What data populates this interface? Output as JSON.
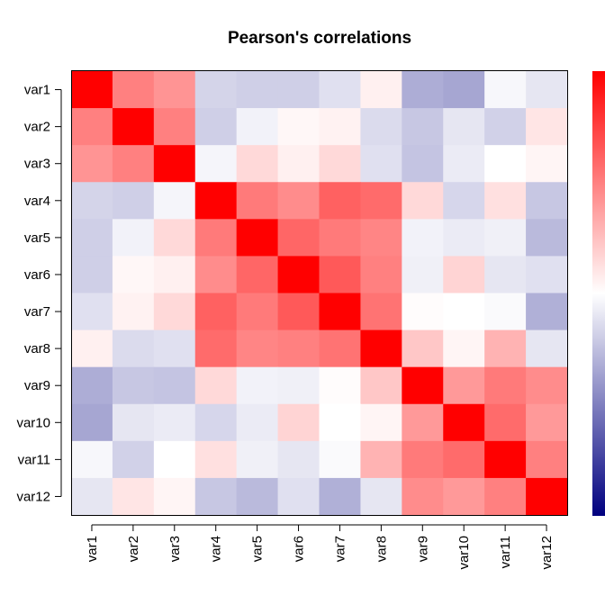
{
  "chart_data": {
    "type": "heatmap",
    "title": "Pearson's correlations",
    "xlabel": "",
    "ylabel": "",
    "rows": [
      "var1",
      "var2",
      "var3",
      "var4",
      "var5",
      "var6",
      "var7",
      "var8",
      "var9",
      "var10",
      "var11",
      "var12"
    ],
    "columns": [
      "var1",
      "var2",
      "var3",
      "var4",
      "var5",
      "var6",
      "var7",
      "var8",
      "var9",
      "var10",
      "var11",
      "var12"
    ],
    "values": [
      [
        1.0,
        0.5,
        0.42,
        -0.17,
        -0.19,
        -0.19,
        -0.12,
        0.06,
        -0.32,
        -0.35,
        -0.03,
        -0.1
      ],
      [
        0.5,
        1.0,
        0.5,
        -0.19,
        -0.05,
        0.03,
        0.05,
        -0.14,
        -0.22,
        -0.1,
        -0.18,
        0.1
      ],
      [
        0.42,
        0.5,
        1.0,
        -0.04,
        0.15,
        0.06,
        0.15,
        -0.12,
        -0.23,
        -0.08,
        0.0,
        0.04
      ],
      [
        -0.17,
        -0.19,
        -0.04,
        1.0,
        0.52,
        0.45,
        0.62,
        0.58,
        0.15,
        -0.16,
        0.12,
        -0.22
      ],
      [
        -0.19,
        -0.05,
        0.15,
        0.52,
        1.0,
        0.6,
        0.52,
        0.48,
        -0.05,
        -0.08,
        -0.06,
        -0.27
      ],
      [
        -0.19,
        0.03,
        0.06,
        0.45,
        0.6,
        1.0,
        0.65,
        0.5,
        -0.06,
        0.17,
        -0.1,
        -0.12
      ],
      [
        -0.12,
        0.05,
        0.15,
        0.62,
        0.52,
        0.65,
        1.0,
        0.55,
        0.01,
        0.0,
        -0.02,
        -0.31
      ],
      [
        0.06,
        -0.14,
        -0.12,
        0.58,
        0.48,
        0.5,
        0.55,
        1.0,
        0.22,
        0.04,
        0.3,
        -0.1
      ],
      [
        -0.32,
        -0.22,
        -0.23,
        0.15,
        -0.05,
        -0.06,
        0.01,
        0.22,
        1.0,
        0.4,
        0.52,
        0.45
      ],
      [
        -0.35,
        -0.1,
        -0.08,
        -0.16,
        -0.08,
        0.17,
        0.0,
        0.04,
        0.4,
        1.0,
        0.58,
        0.4
      ],
      [
        -0.03,
        -0.18,
        0.0,
        0.12,
        -0.06,
        -0.1,
        -0.02,
        0.3,
        0.52,
        0.58,
        1.0,
        0.5
      ],
      [
        -0.1,
        0.1,
        0.04,
        -0.22,
        -0.27,
        -0.12,
        -0.31,
        -0.1,
        0.45,
        0.4,
        0.5,
        1.0
      ]
    ],
    "value_range": [
      -1,
      1
    ],
    "color_scale": {
      "low": "#00007F",
      "mid": "#FFFFFF",
      "high": "#FF0000"
    },
    "grid": false,
    "legend": "right"
  }
}
